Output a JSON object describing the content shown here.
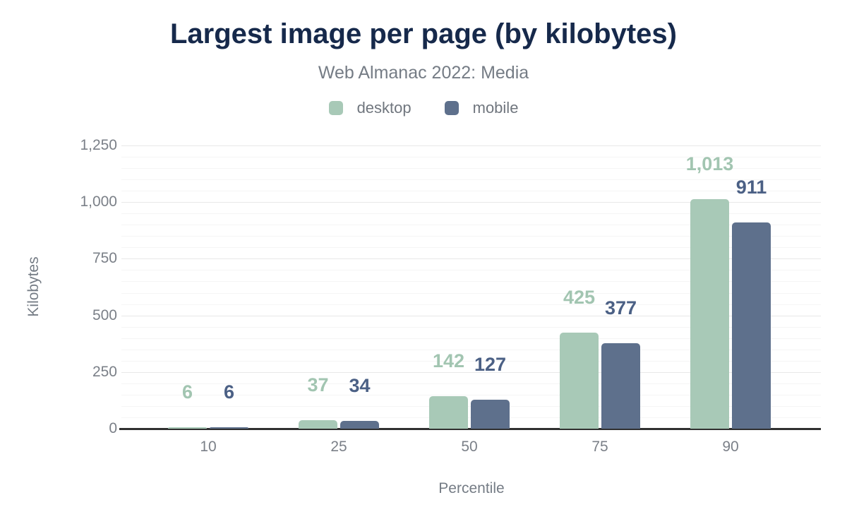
{
  "header": {
    "title": "Largest image per page (by kilobytes)",
    "subtitle": "Web Almanac 2022: Media"
  },
  "legend": [
    {
      "label": "desktop",
      "color": "#a8c9b7"
    },
    {
      "label": "mobile",
      "color": "#5e708c"
    }
  ],
  "palette": {
    "title_color": "#16294b",
    "subtitle_color": "#757c85",
    "axis_text_color": "#7b8088",
    "desktop_green": "#a8c9b7",
    "mobile_slate": "#5e708c"
  },
  "chart_data": {
    "type": "bar",
    "title": "Largest image per page (by kilobytes)",
    "subtitle": "Web Almanac 2022: Media",
    "categories": [
      "10",
      "25",
      "50",
      "75",
      "90"
    ],
    "series": [
      {
        "name": "desktop",
        "values": [
          6,
          37,
          142,
          425,
          1013
        ],
        "labels": [
          "6",
          "37",
          "142",
          "425",
          "1,013"
        ],
        "bar_color": "#a8c9b7",
        "label_color": "#a2c5b1"
      },
      {
        "name": "mobile",
        "values": [
          6,
          34,
          127,
          377,
          911
        ],
        "labels": [
          "6",
          "34",
          "127",
          "377",
          "911"
        ],
        "bar_color": "#5e708c",
        "label_color": "#4b6085"
      }
    ],
    "xlabel": "Percentile",
    "ylabel": "Kilobytes",
    "ylim": [
      0,
      1250
    ],
    "yticks": [
      0,
      250,
      500,
      750,
      1000,
      1250
    ],
    "ytick_labels": [
      "0",
      "250",
      "500",
      "750",
      "1,000",
      "1,250"
    ],
    "minor_grid_step": 50,
    "grid": "on",
    "legend_position": "top",
    "bar_label_position": "above-bar"
  }
}
